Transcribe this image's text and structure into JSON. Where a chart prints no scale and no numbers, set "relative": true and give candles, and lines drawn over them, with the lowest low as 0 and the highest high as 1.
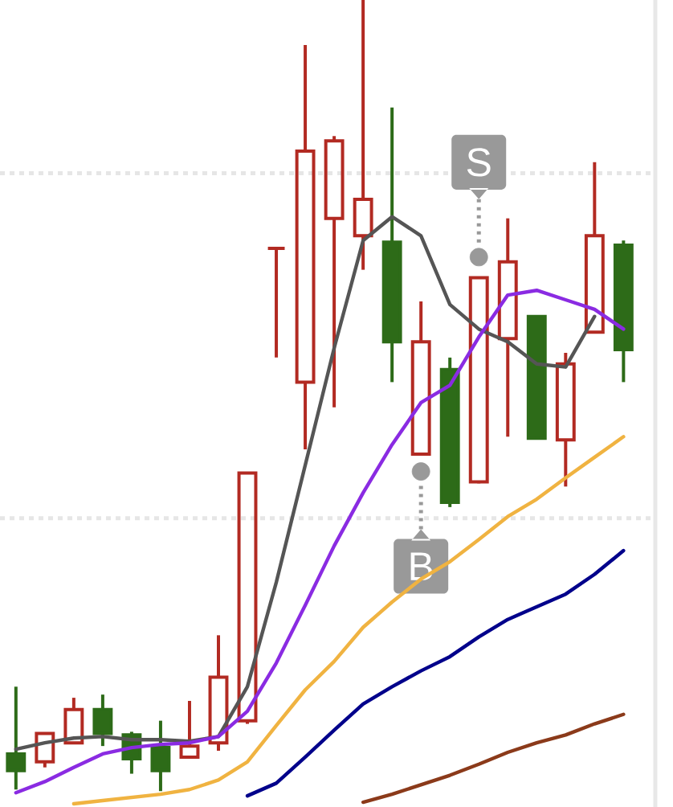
{
  "chart_data": {
    "type": "candlestick",
    "relative": true,
    "categories": [
      null,
      null,
      null,
      null,
      null,
      null,
      null,
      null,
      null,
      null,
      null,
      null,
      null,
      null,
      null,
      null,
      null,
      null,
      null,
      null,
      null,
      null
    ],
    "ref_lines": [
      {
        "axis": "y",
        "value": 0.345,
        "color": "#e6e6e6",
        "line_style": "dotted"
      },
      {
        "axis": "y",
        "value": 0.781,
        "color": "#e6e6e6",
        "line_style": "dotted"
      }
    ],
    "annotations": [
      {
        "text": "B",
        "y": 0.404
      },
      {
        "text": "S",
        "y": 0.675
      }
    ],
    "ohlc": [
      [
        0.047,
        0.132,
        0.002,
        0.026
      ],
      [
        0.037,
        0.073,
        0.03,
        0.073
      ],
      [
        0.061,
        0.118,
        0.061,
        0.103
      ],
      [
        0.103,
        0.122,
        0.057,
        0.073
      ],
      [
        0.071,
        0.075,
        0.022,
        0.041
      ],
      [
        0.055,
        0.089,
        0.0,
        0.026
      ],
      [
        0.043,
        0.114,
        0.043,
        0.057
      ],
      [
        0.061,
        0.197,
        0.051,
        0.144
      ],
      [
        0.089,
        0.402,
        0.085,
        0.402
      ],
      [
        0.686,
        0.686,
        0.548,
        0.686
      ],
      [
        0.517,
        0.943,
        0.432,
        0.809
      ],
      [
        0.724,
        0.828,
        0.485,
        0.822
      ],
      [
        0.702,
        1.0,
        0.659,
        0.748
      ],
      [
        0.694,
        0.864,
        0.517,
        0.568
      ],
      [
        0.426,
        0.619,
        0.426,
        0.568
      ],
      [
        0.533,
        0.548,
        0.359,
        0.365
      ],
      [
        0.391,
        0.649,
        0.389,
        0.649
      ],
      [
        0.572,
        0.724,
        0.448,
        0.669
      ],
      [
        0.6,
        0.6,
        0.446,
        0.446
      ],
      [
        0.444,
        0.554,
        0.385,
        0.54
      ],
      [
        0.58,
        0.795,
        0.58,
        0.702
      ],
      [
        0.69,
        0.696,
        0.517,
        0.558
      ]
    ],
    "colors": [
      "#2d6b18",
      "#b22a22",
      "#b22a22",
      "#2d6b18",
      "#2d6b18",
      "#2d6b18",
      "#b22a22",
      "#b22a22",
      "#b22a22",
      "#b22a22",
      "#b22a22",
      "#b22a22",
      "#b22a22",
      "#2d6b18",
      "#b22a22",
      "#2d6b18",
      "#b22a22",
      "#b22a22",
      "#2d6b18",
      "#b22a22",
      "#b22a22",
      "#2d6b18"
    ],
    "series": [
      {
        "type": "line",
        "color": "#555555",
        "values": [
          0.053,
          0.061,
          0.067,
          0.069,
          0.065,
          0.065,
          0.063,
          0.069,
          0.132,
          0.264,
          0.412,
          0.56,
          0.696,
          0.726,
          0.702,
          0.615,
          0.584,
          0.568,
          0.54,
          0.536,
          0.6,
          null
        ]
      },
      {
        "type": "line",
        "color": "#8a2be2",
        "values": [
          -0.002,
          0.012,
          0.03,
          0.047,
          0.055,
          0.059,
          0.061,
          0.069,
          0.101,
          0.162,
          0.235,
          0.31,
          0.377,
          0.438,
          0.491,
          0.513,
          0.574,
          0.627,
          0.633,
          0.621,
          0.609,
          0.584
        ]
      },
      {
        "type": "line",
        "color": "#f0b341",
        "values": [
          null,
          null,
          -0.016,
          -0.012,
          -0.008,
          -0.004,
          0.002,
          0.014,
          0.037,
          0.083,
          0.128,
          0.164,
          0.207,
          0.239,
          0.268,
          0.29,
          0.318,
          0.347,
          0.369,
          0.396,
          0.422,
          0.448
        ]
      },
      {
        "type": "line",
        "color": "#00008b",
        "values": [
          null,
          null,
          null,
          null,
          null,
          null,
          null,
          null,
          -0.006,
          0.01,
          0.043,
          0.077,
          0.11,
          0.132,
          0.152,
          0.17,
          0.195,
          0.217,
          0.233,
          0.249,
          0.274,
          0.304
        ]
      },
      {
        "type": "line",
        "color": "#8b3a1a",
        "values": [
          null,
          null,
          null,
          null,
          null,
          null,
          null,
          null,
          null,
          null,
          null,
          null,
          -0.014,
          -0.004,
          0.008,
          0.02,
          0.034,
          0.049,
          0.061,
          0.071,
          0.085,
          0.097
        ]
      },
      {
        "type": "scatter",
        "color": "#999999",
        "marker": "circle",
        "values": [
          null,
          null,
          null,
          null,
          null,
          null,
          null,
          null,
          null,
          null,
          null,
          null,
          null,
          null,
          0.404,
          null,
          0.675,
          null,
          null,
          null,
          null,
          null
        ]
      }
    ]
  }
}
